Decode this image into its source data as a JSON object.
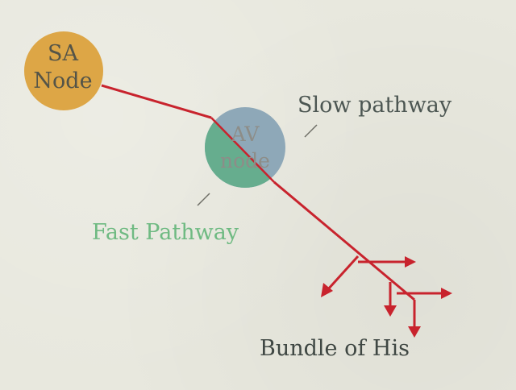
{
  "nodes": {
    "sa": {
      "label": "SA\nNode",
      "color": "#dda646"
    },
    "av": {
      "label": "AV\nnode",
      "slow_color": "#8ea8b8",
      "fast_color": "#66ad8e"
    }
  },
  "labels": {
    "slow_pathway": "Slow pathway",
    "fast_pathway": "Fast Pathway",
    "bundle_of_his": "Bundle of His"
  },
  "colors": {
    "conduction_line": "#c8232d",
    "pointer": "#6e6e66",
    "background": "#e8e8de"
  }
}
